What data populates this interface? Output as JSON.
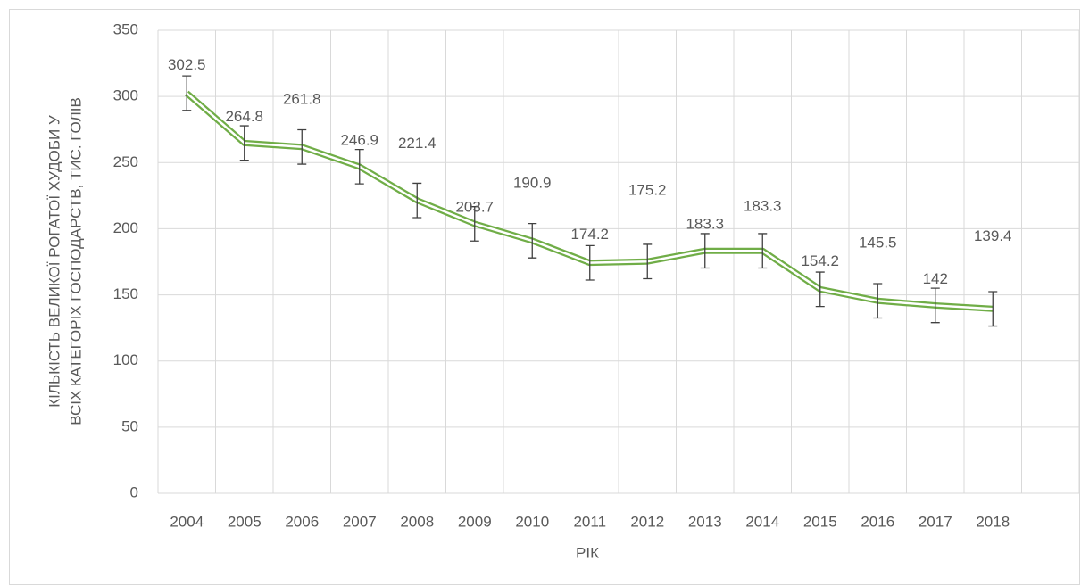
{
  "chart_data": {
    "type": "line",
    "categories": [
      "2004",
      "2005",
      "2006",
      "2007",
      "2008",
      "2009",
      "2010",
      "2011",
      "2012",
      "2013",
      "2014",
      "2015",
      "2016",
      "2017",
      "2018",
      null
    ],
    "values": [
      302.5,
      264.8,
      261.8,
      246.9,
      221.4,
      203.7,
      190.9,
      174.2,
      175.2,
      183.3,
      183.3,
      154.2,
      145.5,
      142,
      139.4,
      null
    ],
    "errors": [
      13,
      13,
      13,
      13,
      13,
      13,
      13,
      13,
      13,
      13,
      13,
      13,
      13,
      13,
      13,
      null
    ],
    "color": "#70ad47",
    "ylim": [
      0,
      350
    ],
    "yticks": [
      0,
      50,
      100,
      150,
      200,
      250,
      300,
      350
    ],
    "grid": true,
    "xlabel": "РІК",
    "ylabel": [
      "КІЛЬКІСТЬ ВЕЛИКОЇ РОГАТОЇ ХУДОБИ У",
      "ВСІХ КАТЕГОРІХ ГОСПОДАРСТВ,  ТИС. ГОЛІВ"
    ]
  }
}
